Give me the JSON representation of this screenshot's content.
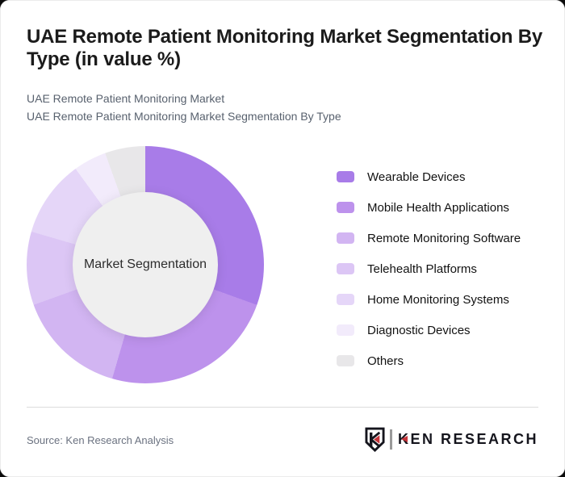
{
  "header": {
    "title": "UAE Remote Patient Monitoring Market Segmentation By Type (in value %)",
    "subtitle_line1": "UAE Remote Patient Monitoring Market",
    "subtitle_line2": "UAE Remote Patient Monitoring Market Segmentation By Type"
  },
  "chart_data": {
    "type": "pie",
    "subtype": "donut",
    "title": "UAE Remote Patient Monitoring Market Segmentation By Type (in value %)",
    "center_label": "Market Segmentation",
    "categories": [
      "Wearable Devices",
      "Mobile Health Applications",
      "Remote Monitoring Software",
      "Telehealth Platforms",
      "Home Monitoring Systems",
      "Diagnostic Devices",
      "Others"
    ],
    "values": [
      30.5,
      24,
      15,
      10,
      10.5,
      4.5,
      5.5
    ],
    "unit": "value %",
    "colors": [
      "#a87ce8",
      "#bd92ec",
      "#d2b5f2",
      "#dcc6f5",
      "#e5d6f8",
      "#f2ebfb",
      "#e8e7e9"
    ],
    "hole_color": "#efefef",
    "start_angle_deg": 0,
    "direction": "clockwise",
    "legend_position": "right"
  },
  "footer": {
    "source": "Source: Ken Research Analysis",
    "logo_monogram": "K",
    "logo_text": "KEN RESEARCH",
    "logo_red": "#c5343a"
  }
}
